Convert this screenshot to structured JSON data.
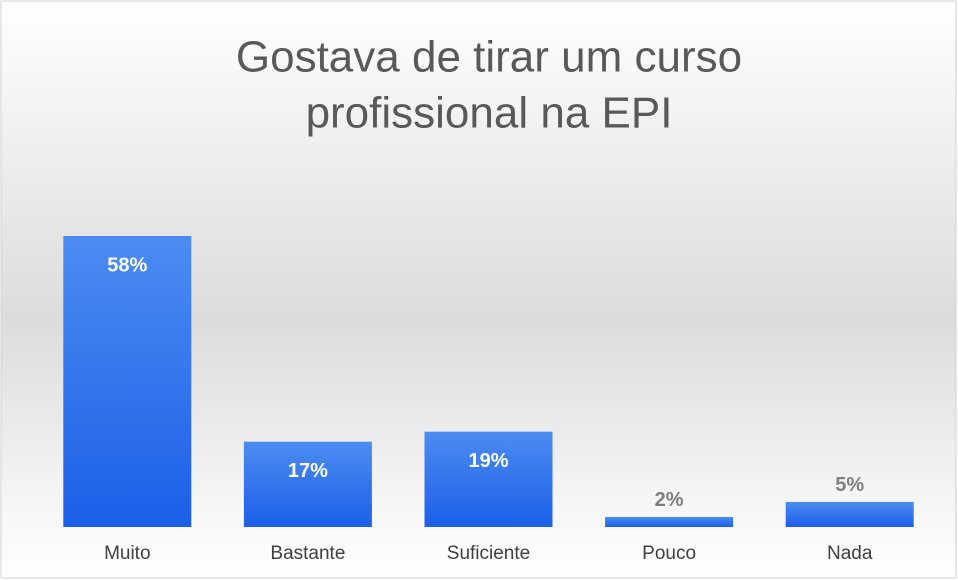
{
  "chart_data": {
    "type": "bar",
    "title": [
      "Gostava de tirar um curso",
      "profissional  na EPI"
    ],
    "categories": [
      "Muito",
      "Bastante",
      "Suficiente",
      "Pouco",
      "Nada"
    ],
    "values": [
      58,
      17,
      19,
      2,
      5
    ],
    "value_labels": [
      "58%",
      "17%",
      "19%",
      "2%",
      "5%"
    ],
    "color": "#2f74ee"
  }
}
